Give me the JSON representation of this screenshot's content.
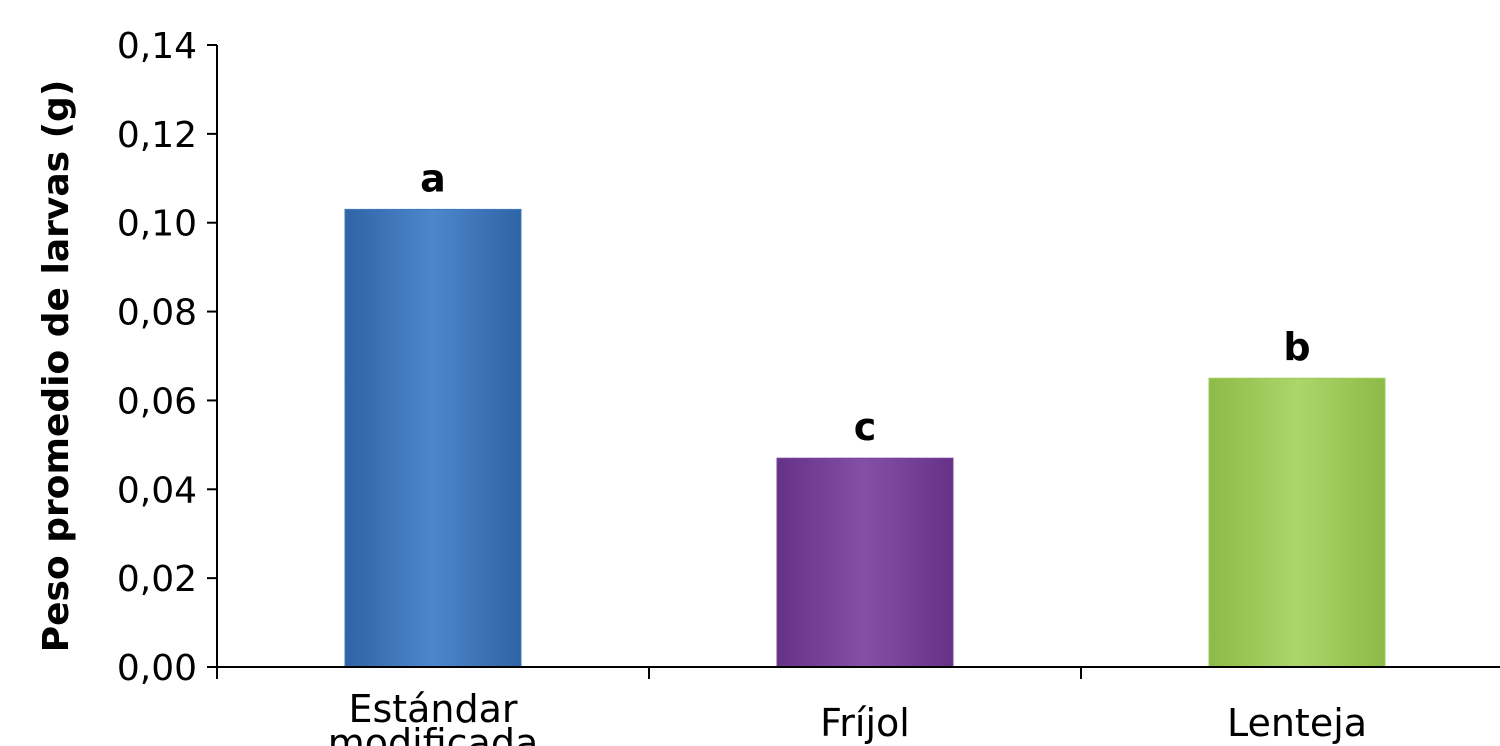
{
  "chart_data": {
    "type": "bar",
    "title": "",
    "xlabel": "",
    "ylabel": "Peso promedio de larvas (g)",
    "ylim": [
      0,
      0.14
    ],
    "yticks": [
      0,
      0.02,
      0.04,
      0.06,
      0.08,
      0.1,
      0.12,
      0.14
    ],
    "ytick_labels": [
      "0,00",
      "0,02",
      "0,04",
      "0,06",
      "0,08",
      "0,10",
      "0,12",
      "0,14"
    ],
    "categories": [
      [
        "Estándar",
        "modificada"
      ],
      [
        "Fríjol"
      ],
      [
        "Lenteja"
      ]
    ],
    "values": [
      0.103,
      0.047,
      0.065
    ],
    "data_labels": [
      "a",
      "c",
      "b"
    ],
    "colors": [
      "#3f7ac0",
      "#7a439b",
      "#a0cc5a"
    ],
    "grid": false,
    "legend": "none"
  }
}
